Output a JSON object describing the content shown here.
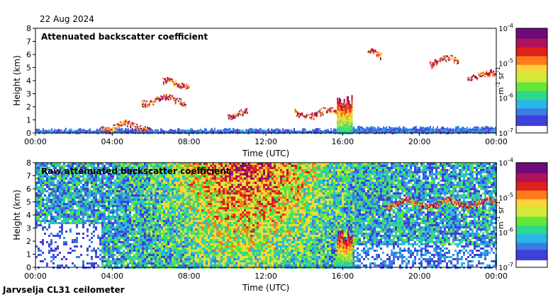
{
  "date": "22 Aug 2024",
  "footer": "Jarvselja CL31 ceilometer",
  "colors": {
    "background_high": "#ffffff",
    "colormap": [
      "#ffffff",
      "#3f3fd9",
      "#3a7be6",
      "#28b7e6",
      "#2fd88b",
      "#62e83a",
      "#d4e83a",
      "#ffd43a",
      "#ff7a1a",
      "#e0201a",
      "#b0125a",
      "#6e0a7a"
    ]
  },
  "chart_data": [
    {
      "type": "heatmap",
      "title": "Attenuated backscatter coefficient",
      "xlabel": "Time (UTC)",
      "ylabel": "Height (km)",
      "xlim": [
        "00:00",
        "24:00"
      ],
      "ylim": [
        0,
        8
      ],
      "x_ticks": [
        "00:00",
        "04:00",
        "08:00",
        "12:00",
        "16:00",
        "20:00",
        "00:00"
      ],
      "y_ticks": [
        "0",
        "1",
        "2",
        "3",
        "4",
        "5",
        "6",
        "7",
        "8"
      ],
      "colorbar": {
        "scale": "log",
        "ticks": [
          "10",
          "10",
          "10",
          "10"
        ],
        "tick_exponents": [
          "-4",
          "-5",
          "-6",
          "-7"
        ],
        "unit": "m",
        "unit_exp": "-1",
        "unit2": "sr",
        "unit2_exp": "-1"
      },
      "features": [
        {
          "name": "boundary-layer",
          "t_start": 0.0,
          "t_end": 24.0,
          "h_top": 0.4
        },
        {
          "name": "low-cloud",
          "t_start": 3.4,
          "t_end": 6.0,
          "h": 0.6
        },
        {
          "name": "mid-cloud",
          "t_start": 5.5,
          "t_end": 7.8,
          "h": 2.6
        },
        {
          "name": "cloud-band",
          "t_start": 6.6,
          "t_end": 8.0,
          "h": 3.9
        },
        {
          "name": "cloud-band",
          "t_start": 10.0,
          "t_end": 11.0,
          "h": 1.5
        },
        {
          "name": "cloud-band",
          "t_start": 13.5,
          "t_end": 16.0,
          "h": 1.6
        },
        {
          "name": "rain-column",
          "t_start": 15.7,
          "t_end": 16.5,
          "h": 3.0
        },
        {
          "name": "high-cloud",
          "t_start": 17.3,
          "t_end": 18.0,
          "h": 6.1
        },
        {
          "name": "high-cloud",
          "t_start": 20.5,
          "t_end": 22.0,
          "h": 5.6
        },
        {
          "name": "high-cloud",
          "t_start": 22.5,
          "t_end": 24.0,
          "h": 4.5
        }
      ]
    },
    {
      "type": "heatmap",
      "title": "Raw attenuated backscatter coefficient",
      "xlabel": "Time (UTC)",
      "ylabel": "Height (km)",
      "xlim": [
        "00:00",
        "24:00"
      ],
      "ylim": [
        0,
        8
      ],
      "x_ticks": [
        "00:00",
        "04:00",
        "08:00",
        "12:00",
        "16:00",
        "20:00",
        "00:00"
      ],
      "y_ticks": [
        "0",
        "1",
        "2",
        "3",
        "4",
        "5",
        "6",
        "7",
        "8"
      ],
      "colorbar": {
        "scale": "log",
        "ticks": [
          "10",
          "10",
          "10",
          "10"
        ],
        "tick_exponents": [
          "-4",
          "-5",
          "-6",
          "-7"
        ],
        "unit": "m",
        "unit_exp": "-1",
        "unit2": "sr",
        "unit2_exp": "-1"
      },
      "features": [
        {
          "name": "noise-field",
          "t_start": 0.0,
          "t_end": 24.0,
          "h_top": 8.0
        },
        {
          "name": "low-clear-region",
          "t_start": 0.0,
          "t_end": 3.4,
          "h_top": 3.4
        },
        {
          "name": "rain-column",
          "t_start": 15.7,
          "t_end": 16.5,
          "h": 3.0
        },
        {
          "name": "high-cloud",
          "t_start": 18.2,
          "t_end": 24.0,
          "h": 5.0
        }
      ]
    }
  ]
}
